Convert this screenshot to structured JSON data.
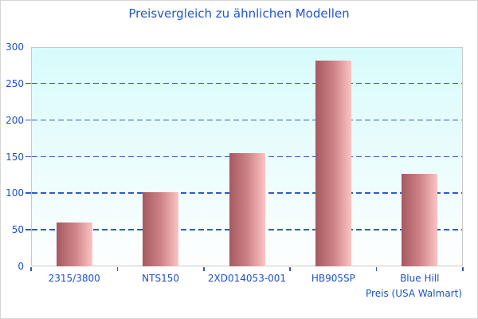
{
  "colors": {
    "title_text": "#2356d2",
    "label_text": "#1b50cc",
    "gridline": "#3459c6",
    "plot_bg_top": "#d8fbfb",
    "plot_bg_bottom": "#fdfefe",
    "plot_border": "#c8c8c8",
    "frame_border": "#d6d6d6",
    "bar_left": "#a55a5f",
    "bar_mid": "#cd8286",
    "bar_right": "#fcc3c3"
  },
  "chart_data": {
    "type": "bar",
    "title": "Preisvergleich zu ähnlichen Modellen",
    "categories": [
      "2315/3800",
      "NTS150",
      "2XD014053-001",
      "HB905SP",
      "Blue Hill"
    ],
    "values": [
      60,
      102,
      155,
      282,
      127
    ],
    "xlabel": "",
    "ylabel": "Preis (USA Walmart)",
    "ylabel_position": "bottom-right",
    "ylim": [
      0,
      300
    ],
    "yticks": [
      0,
      50,
      100,
      150,
      200,
      250,
      300
    ],
    "grid": "horizontal-dashed-blue",
    "legend": "none",
    "bar_style": "horizontal gradient dark-red to light-pink",
    "plot_background": "light cyan fading to white"
  }
}
